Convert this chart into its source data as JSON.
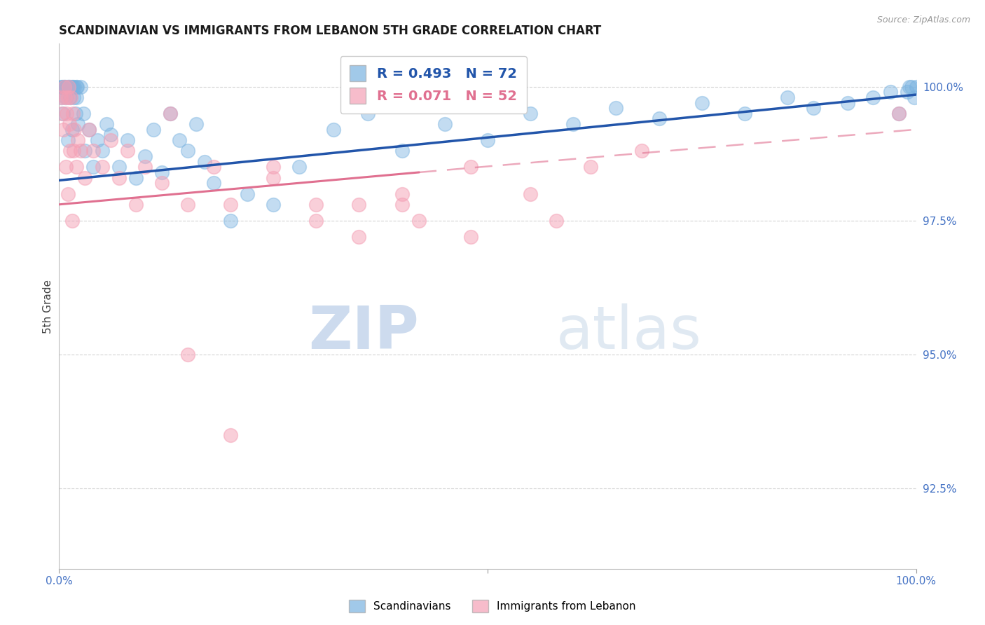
{
  "title": "SCANDINAVIAN VS IMMIGRANTS FROM LEBANON 5TH GRADE CORRELATION CHART",
  "source": "Source: ZipAtlas.com",
  "ylabel": "5th Grade",
  "legend_entries": [
    "Scandinavians",
    "Immigrants from Lebanon"
  ],
  "r_blue": 0.493,
  "n_blue": 72,
  "r_pink": 0.071,
  "n_pink": 52,
  "blue_color": "#7ab3e0",
  "pink_color": "#f4a0b5",
  "blue_line_color": "#2255aa",
  "pink_line_color": "#e07090",
  "watermark_zip": "ZIP",
  "watermark_atlas": "atlas",
  "watermark_color": "#ccd9ee",
  "grid_color": "#c8c8c8",
  "axis_label_color": "#4472c4",
  "blue_scatter": {
    "x": [
      0.2,
      0.3,
      0.4,
      0.5,
      0.5,
      0.6,
      0.7,
      0.8,
      0.9,
      1.0,
      1.0,
      1.1,
      1.2,
      1.3,
      1.4,
      1.5,
      1.5,
      1.6,
      1.7,
      1.8,
      1.9,
      2.0,
      2.0,
      2.1,
      2.2,
      2.5,
      2.8,
      3.0,
      3.5,
      4.0,
      4.5,
      5.0,
      5.5,
      6.0,
      7.0,
      8.0,
      9.0,
      10.0,
      11.0,
      12.0,
      13.0,
      14.0,
      15.0,
      16.0,
      17.0,
      18.0,
      20.0,
      22.0,
      25.0,
      28.0,
      32.0,
      36.0,
      40.0,
      45.0,
      50.0,
      55.0,
      60.0,
      65.0,
      70.0,
      75.0,
      80.0,
      85.0,
      88.0,
      92.0,
      95.0,
      97.0,
      98.0,
      99.0,
      99.2,
      99.5,
      99.8,
      100.0
    ],
    "y": [
      100.0,
      99.8,
      100.0,
      100.0,
      99.5,
      100.0,
      100.0,
      99.8,
      100.0,
      99.0,
      100.0,
      100.0,
      100.0,
      99.8,
      100.0,
      100.0,
      99.2,
      100.0,
      99.8,
      100.0,
      99.5,
      99.8,
      100.0,
      100.0,
      99.3,
      100.0,
      99.5,
      98.8,
      99.2,
      98.5,
      99.0,
      98.8,
      99.3,
      99.1,
      98.5,
      99.0,
      98.3,
      98.7,
      99.2,
      98.4,
      99.5,
      99.0,
      98.8,
      99.3,
      98.6,
      98.2,
      97.5,
      98.0,
      97.8,
      98.5,
      99.2,
      99.5,
      98.8,
      99.3,
      99.0,
      99.5,
      99.3,
      99.6,
      99.4,
      99.7,
      99.5,
      99.8,
      99.6,
      99.7,
      99.8,
      99.9,
      99.5,
      99.9,
      100.0,
      100.0,
      99.8,
      100.0
    ]
  },
  "pink_scatter": {
    "x": [
      0.2,
      0.3,
      0.5,
      0.6,
      0.7,
      0.8,
      0.9,
      1.0,
      1.0,
      1.1,
      1.2,
      1.3,
      1.4,
      1.5,
      1.6,
      1.7,
      1.8,
      2.0,
      2.2,
      2.5,
      3.0,
      3.5,
      4.0,
      5.0,
      6.0,
      7.0,
      8.0,
      9.0,
      10.0,
      12.0,
      13.0,
      15.0,
      18.0,
      20.0,
      25.0,
      30.0,
      35.0,
      40.0,
      42.0,
      48.0,
      55.0,
      62.0,
      15.0,
      20.0,
      25.0,
      30.0,
      35.0,
      40.0,
      48.0,
      58.0,
      68.0,
      98.0
    ],
    "y": [
      99.8,
      99.5,
      99.2,
      100.0,
      99.8,
      98.5,
      99.5,
      98.0,
      99.8,
      100.0,
      99.3,
      98.8,
      99.8,
      97.5,
      99.5,
      98.8,
      99.2,
      98.5,
      99.0,
      98.8,
      98.3,
      99.2,
      98.8,
      98.5,
      99.0,
      98.3,
      98.8,
      97.8,
      98.5,
      98.2,
      99.5,
      97.8,
      98.5,
      97.8,
      98.3,
      97.5,
      97.8,
      98.0,
      97.5,
      97.2,
      98.0,
      98.5,
      95.0,
      93.5,
      98.5,
      97.8,
      97.2,
      97.8,
      98.5,
      97.5,
      98.8,
      99.5
    ]
  },
  "xmin": 0.0,
  "xmax": 100.0,
  "ymin": 91.0,
  "ymax": 100.8,
  "yticks": [
    92.5,
    95.0,
    97.5,
    100.0
  ],
  "blue_trend_start_x": 0.0,
  "blue_trend_start_y": 98.25,
  "blue_trend_end_x": 100.0,
  "blue_trend_end_y": 99.85,
  "pink_trend_solid_start_x": 0.0,
  "pink_trend_solid_start_y": 97.8,
  "pink_trend_solid_end_x": 42.0,
  "pink_trend_solid_end_y": 98.4,
  "pink_trend_dash_start_x": 42.0,
  "pink_trend_dash_start_y": 98.4,
  "pink_trend_dash_end_x": 100.0,
  "pink_trend_dash_end_y": 99.2
}
